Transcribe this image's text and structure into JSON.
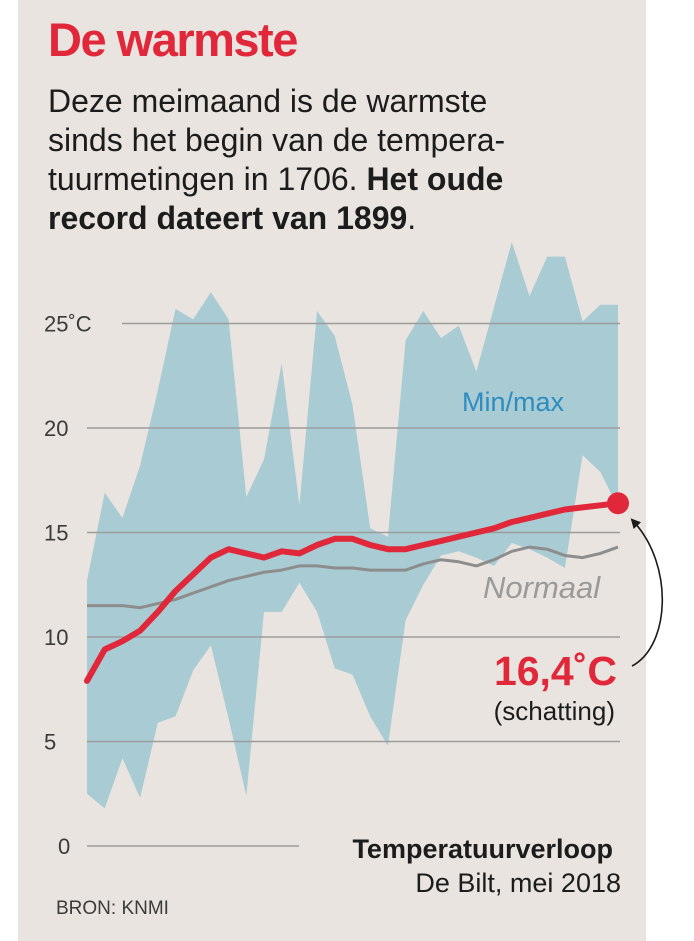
{
  "title": "De warmste",
  "intro": {
    "line1": "Deze meimaand is de warmste",
    "line2": "sinds het begin van de tempera-",
    "line3_plain": "tuurmetingen in 1706. ",
    "line3_bold": "Het oude",
    "line4_bold": "record dateert van 1899",
    "line4_end": "."
  },
  "caption": {
    "line1": "Temperatuurverloop",
    "line2": "De Bilt, mei 2018"
  },
  "source": "BRON: KNMI",
  "callout": {
    "value": "16,4˚C",
    "note": "(schatting)"
  },
  "colors": {
    "accent": "#e0283a",
    "band": "#a9cbd3",
    "normal": "#8d8d8d",
    "minmax_label": "#2e8cbf",
    "panel": "#e9e4df"
  },
  "chart_data": {
    "type": "line",
    "title": "",
    "xlabel": "",
    "ylabel": "",
    "ylim": [
      0,
      26
    ],
    "grid": true,
    "y_ticks": [
      {
        "value": 0,
        "label": "0"
      },
      {
        "value": 5,
        "label": "5"
      },
      {
        "value": 10,
        "label": "10"
      },
      {
        "value": 15,
        "label": "15"
      },
      {
        "value": 20,
        "label": "20"
      },
      {
        "value": 25,
        "label": "25˚C"
      }
    ],
    "x": [
      1,
      2,
      3,
      4,
      5,
      6,
      7,
      8,
      9,
      10,
      11,
      12,
      13,
      14,
      15,
      16,
      17,
      18,
      19,
      20,
      21,
      22,
      23,
      24,
      25,
      26,
      27,
      28,
      29,
      30,
      31
    ],
    "series": [
      {
        "name": "Min/max",
        "kind": "band",
        "min": [
          2.5,
          1.8,
          4.2,
          2.3,
          5.9,
          6.2,
          8.4,
          9.6,
          6.1,
          2.4,
          11.2,
          11.2,
          12.6,
          11.2,
          8.5,
          8.2,
          6.2,
          4.8,
          10.8,
          12.5,
          13.9,
          14.1,
          13.8,
          13.4,
          14.5,
          14.2,
          13.8,
          13.3,
          18.7,
          17.9,
          16.2
        ],
        "max": [
          12.7,
          16.9,
          15.7,
          18.2,
          21.8,
          25.7,
          25.2,
          26.5,
          25.2,
          16.7,
          18.5,
          23.1,
          16.3,
          25.6,
          24.4,
          21.1,
          15.2,
          14.8,
          24.2,
          25.6,
          24.3,
          24.9,
          22.7,
          25.8,
          28.9,
          26.3,
          28.2,
          28.2,
          25.1,
          25.9,
          25.9
        ]
      },
      {
        "name": "Normaal",
        "kind": "line",
        "values": [
          11.5,
          11.5,
          11.5,
          11.4,
          11.6,
          11.8,
          12.1,
          12.4,
          12.7,
          12.9,
          13.1,
          13.2,
          13.4,
          13.4,
          13.3,
          13.3,
          13.2,
          13.2,
          13.2,
          13.5,
          13.7,
          13.6,
          13.4,
          13.7,
          14.1,
          14.3,
          14.2,
          13.9,
          13.8,
          14,
          14.3
        ]
      },
      {
        "name": "16,4˚C (schatting)",
        "kind": "line",
        "values": [
          7.9,
          9.4,
          9.8,
          10.3,
          11.2,
          12.2,
          13,
          13.8,
          14.2,
          14,
          13.8,
          14.1,
          14,
          14.4,
          14.7,
          14.7,
          14.4,
          14.2,
          14.2,
          14.4,
          14.6,
          14.8,
          15,
          15.2,
          15.5,
          15.7,
          15.9,
          16.1,
          16.2,
          16.3,
          16.4
        ]
      }
    ],
    "annotations": [
      "Min/max",
      "Normaal"
    ]
  }
}
